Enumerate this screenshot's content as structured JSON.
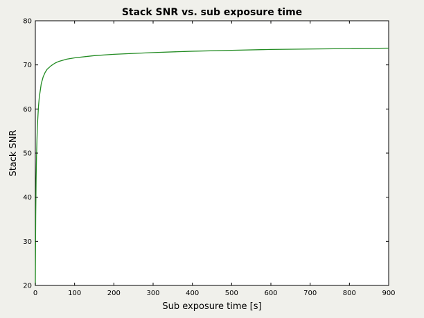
{
  "chart_data": {
    "type": "line",
    "title": "Stack SNR vs. sub exposure time",
    "xlabel": "Sub exposure time [s]",
    "ylabel": "Stack SNR",
    "xlim": [
      0,
      900
    ],
    "ylim": [
      20,
      80
    ],
    "xticks": [
      0,
      100,
      200,
      300,
      400,
      500,
      600,
      700,
      800,
      900
    ],
    "yticks": [
      20,
      30,
      40,
      50,
      60,
      70,
      80
    ],
    "grid": false,
    "legend": "none",
    "series": [
      {
        "color": "#228b22",
        "x": [
          0,
          1,
          2,
          3,
          5,
          8,
          10,
          15,
          20,
          25,
          30,
          40,
          50,
          60,
          80,
          100,
          150,
          200,
          250,
          300,
          400,
          500,
          600,
          700,
          800,
          900
        ],
        "y": [
          20.0,
          35.9,
          44.0,
          49.2,
          55.7,
          60.6,
          62.6,
          65.7,
          67.3,
          68.3,
          69.0,
          69.8,
          70.4,
          70.8,
          71.3,
          71.6,
          72.1,
          72.4,
          72.6,
          72.8,
          73.1,
          73.3,
          73.5,
          73.6,
          73.7,
          73.8
        ]
      }
    ]
  }
}
